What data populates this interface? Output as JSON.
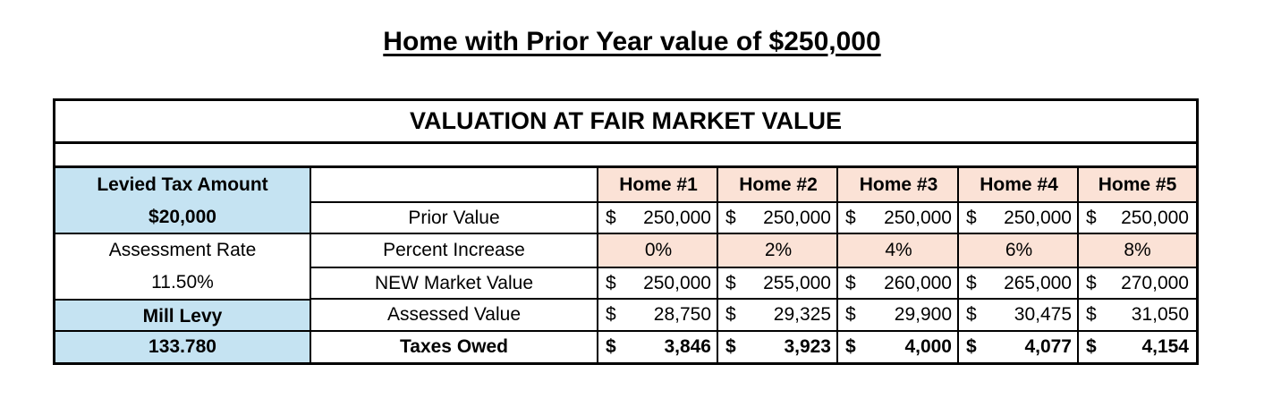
{
  "title": "Home with Prior Year value of $250,000",
  "section_title": "VALUATION AT FAIR MARKET VALUE",
  "left": {
    "levied_label": "Levied Tax Amount",
    "levied_value": "$20,000",
    "assessment_label": "Assessment Rate",
    "assessment_value": "11.50%",
    "mill_label": "Mill Levy",
    "mill_value": "133.780"
  },
  "row_labels": [
    "Prior Value",
    "Percent Increase",
    "NEW Market Value",
    "Assessed Value",
    "Taxes Owed"
  ],
  "homes": [
    {
      "name": "Home #1",
      "prior": "250,000",
      "pct": "0%",
      "market": "250,000",
      "assessed": "28,750",
      "taxes": "3,846"
    },
    {
      "name": "Home #2",
      "prior": "250,000",
      "pct": "2%",
      "market": "255,000",
      "assessed": "29,325",
      "taxes": "3,923"
    },
    {
      "name": "Home #3",
      "prior": "250,000",
      "pct": "4%",
      "market": "260,000",
      "assessed": "29,900",
      "taxes": "4,000"
    },
    {
      "name": "Home #4",
      "prior": "250,000",
      "pct": "6%",
      "market": "265,000",
      "assessed": "30,475",
      "taxes": "4,077"
    },
    {
      "name": "Home #5",
      "prior": "250,000",
      "pct": "8%",
      "market": "270,000",
      "assessed": "31,050",
      "taxes": "4,154"
    }
  ],
  "currency_symbol": "$",
  "colors": {
    "blue": "#c5e3f2",
    "peach": "#fbe2d6",
    "border": "#000000"
  }
}
